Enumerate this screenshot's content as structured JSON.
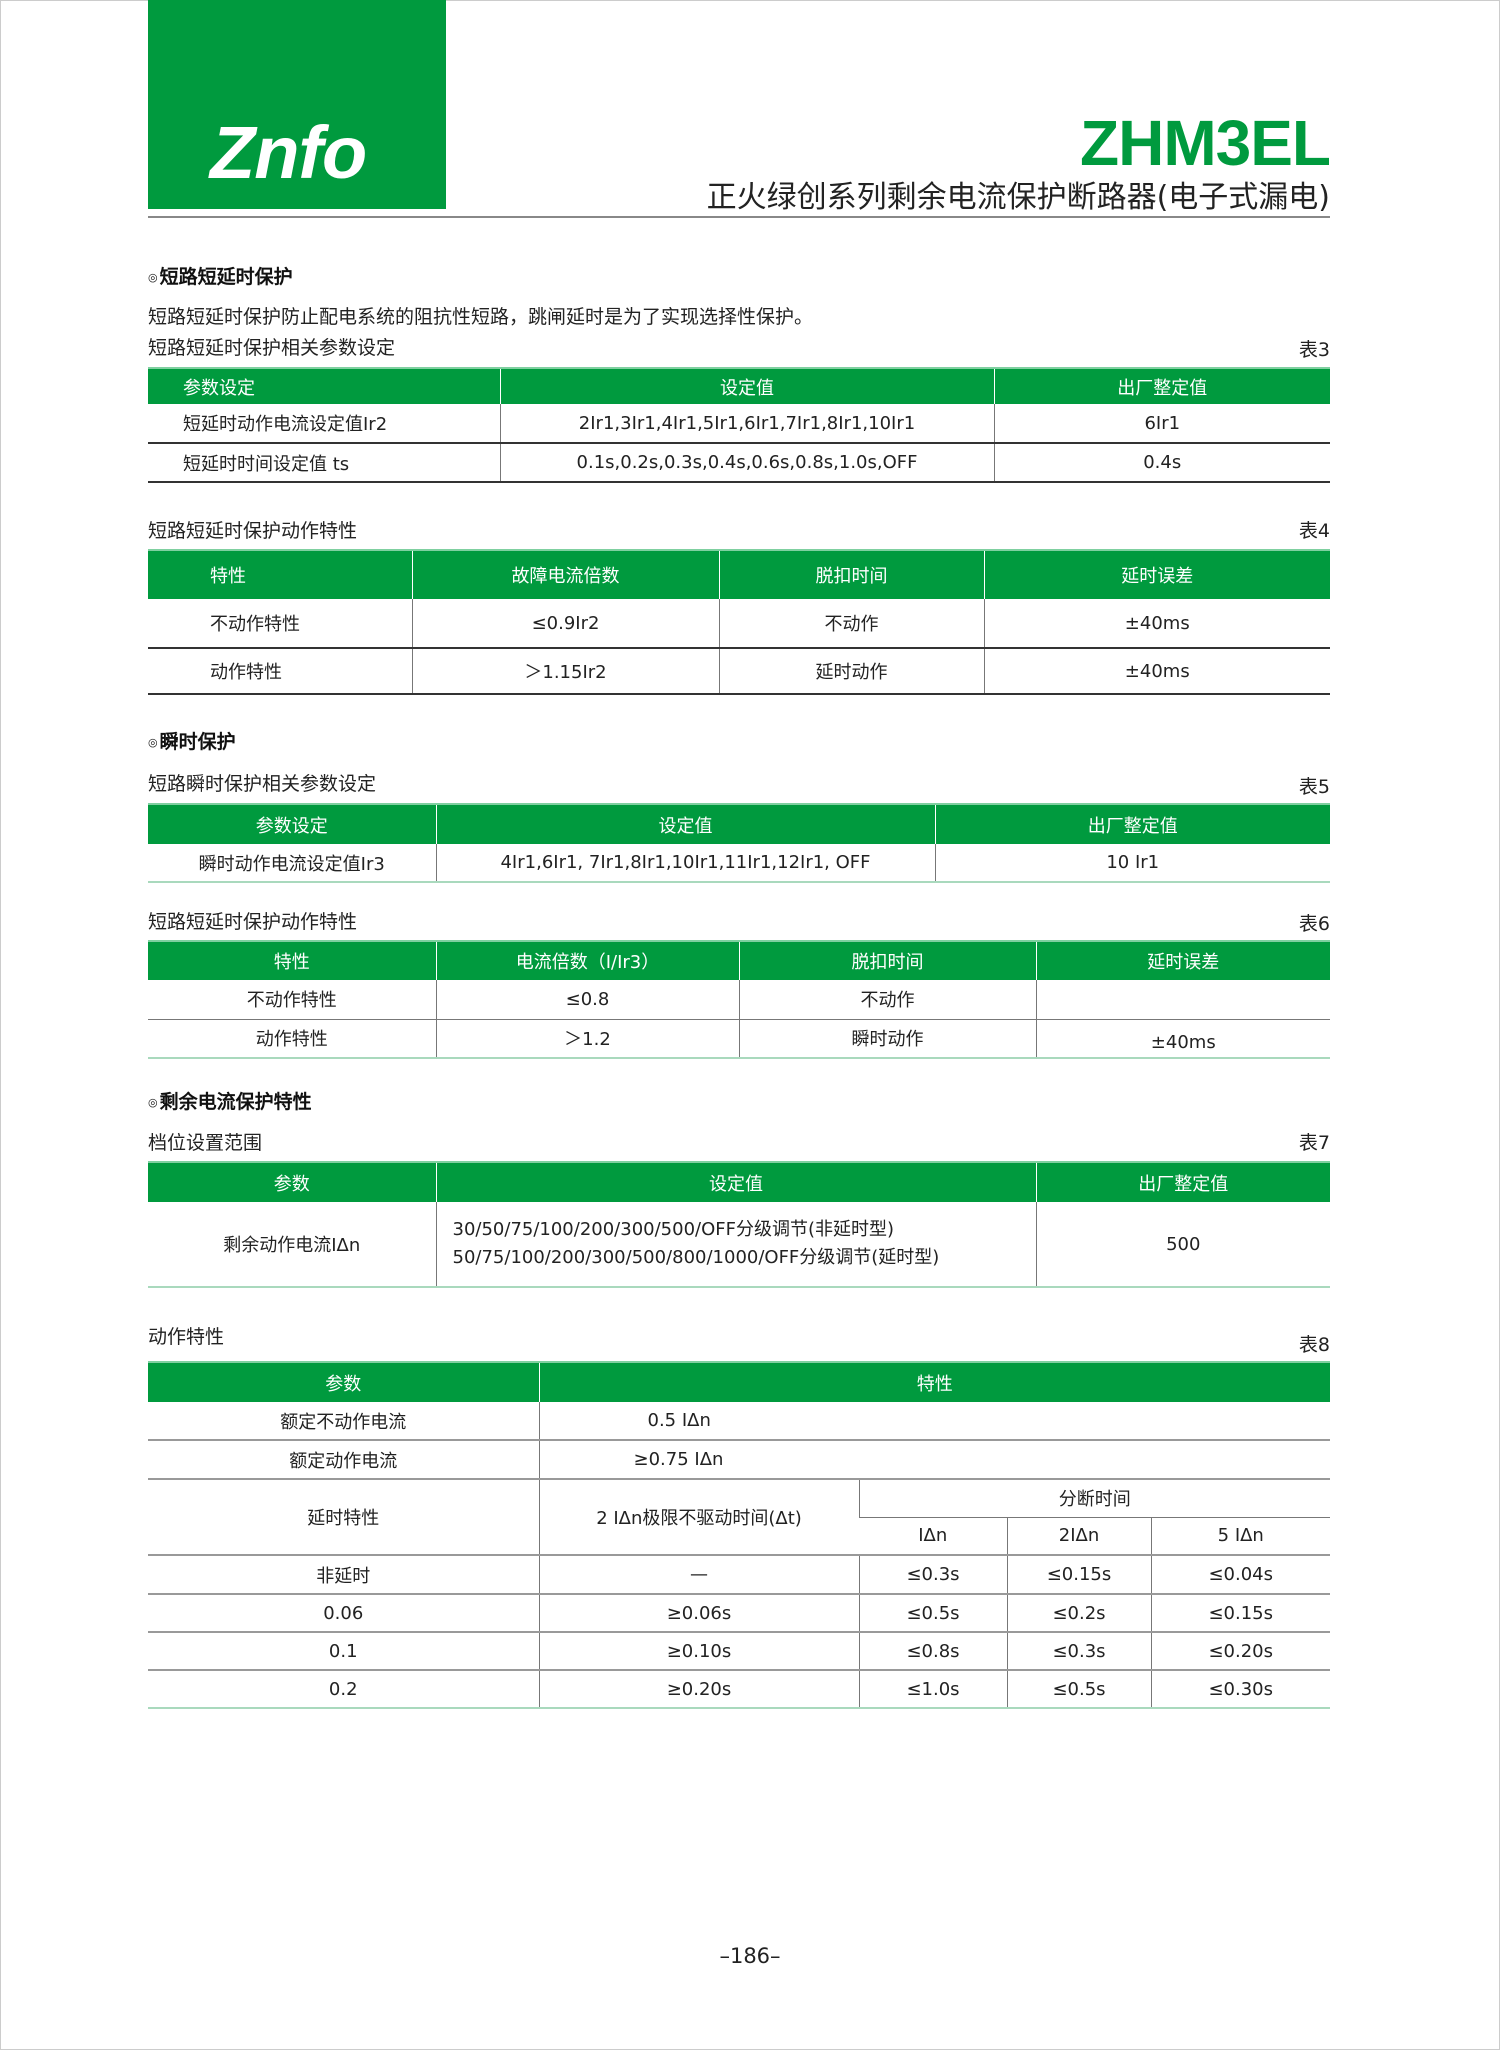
{
  "header": {
    "logo": "Znfo",
    "model": "ZHM3EL",
    "subtitle": "正火绿创系列剩余电流保护断路器(电子式漏电)"
  },
  "s1": {
    "heading": "短路短延时保护",
    "desc": "短路短延时保护防止配电系统的阻抗性短路，跳闸延时是为了实现选择性保护。"
  },
  "t3": {
    "caption": "短路短延时保护相关参数设定",
    "no": "表3",
    "headers": [
      "参数设定",
      "设定值",
      "出厂整定值"
    ],
    "rows": [
      [
        "短延时动作电流设定值Ir2",
        "2Ir1,3Ir1,4Ir1,5Ir1,6Ir1,7Ir1,8Ir1,10Ir1",
        "6Ir1"
      ],
      [
        "短延时时间设定值  ts",
        "0.1s,0.2s,0.3s,0.4s,0.6s,0.8s,1.0s,OFF",
        "0.4s"
      ]
    ]
  },
  "t4": {
    "caption": "短路短延时保护动作特性",
    "no": "表4",
    "headers": [
      "特性",
      "故障电流倍数",
      "脱扣时间",
      "延时误差"
    ],
    "rows": [
      [
        "不动作特性",
        "≤0.9Ir2",
        "不动作",
        "±40ms"
      ],
      [
        "动作特性",
        "＞1.15Ir2",
        "延时动作",
        "±40ms"
      ]
    ]
  },
  "s2": {
    "heading": "瞬时保护"
  },
  "t5": {
    "caption": "短路瞬时保护相关参数设定",
    "no": "表5",
    "headers": [
      "参数设定",
      "设定值",
      "出厂整定值"
    ],
    "rows": [
      [
        "瞬时动作电流设定值Ir3",
        "4Ir1,6Ir1, 7Ir1,8Ir1,10Ir1,11Ir1,12Ir1, OFF",
        "10 Ir1"
      ]
    ]
  },
  "t6": {
    "caption": "短路短延时保护动作特性",
    "no": "表6",
    "headers": [
      "特性",
      "电流倍数（I/Ir3）",
      "脱扣时间",
      "延时误差"
    ],
    "rows": [
      [
        "不动作特性",
        "≤0.8",
        "不动作",
        ""
      ],
      [
        "动作特性",
        "＞1.2",
        "瞬时动作",
        "±40ms"
      ]
    ]
  },
  "s3": {
    "heading": "剩余电流保护特性"
  },
  "t7": {
    "caption": "档位设置范围",
    "no": "表7",
    "headers": [
      "参数",
      "设定值",
      "出厂整定值"
    ],
    "row": {
      "param": "剩余动作电流IΔn",
      "values": [
        "30/50/75/100/200/300/500/OFF分级调节(非延时型)",
        "50/75/100/200/300/500/800/1000/OFF分级调节(延时型)"
      ],
      "default": "500"
    }
  },
  "t8": {
    "caption": "动作特性",
    "no": "表8",
    "headers": [
      "参数",
      "特性"
    ],
    "rated": [
      [
        "额定不动作电流",
        "0.5 IΔn"
      ],
      [
        "额定动作电流",
        "≥0.75 IΔn"
      ]
    ],
    "sub": {
      "c1": "延时特性",
      "c2": "2 IΔn极限不驱动时间(Δt)",
      "group": "分断时间",
      "cols": [
        "IΔn",
        "2IΔn",
        "5 IΔn"
      ]
    },
    "rows": [
      [
        "非延时",
        "—",
        "≤0.3s",
        "≤0.15s",
        "≤0.04s"
      ],
      [
        "0.06",
        "≥0.06s",
        "≤0.5s",
        "≤0.2s",
        "≤0.15s"
      ],
      [
        "0.1",
        "≥0.10s",
        "≤0.8s",
        "≤0.3s",
        "≤0.20s"
      ],
      [
        "0.2",
        "≥0.20s",
        "≤1.0s",
        "≤0.5s",
        "≤0.30s"
      ]
    ]
  },
  "footer": {
    "page": "–186–"
  },
  "colors": {
    "brand_green": "#009a3e"
  }
}
